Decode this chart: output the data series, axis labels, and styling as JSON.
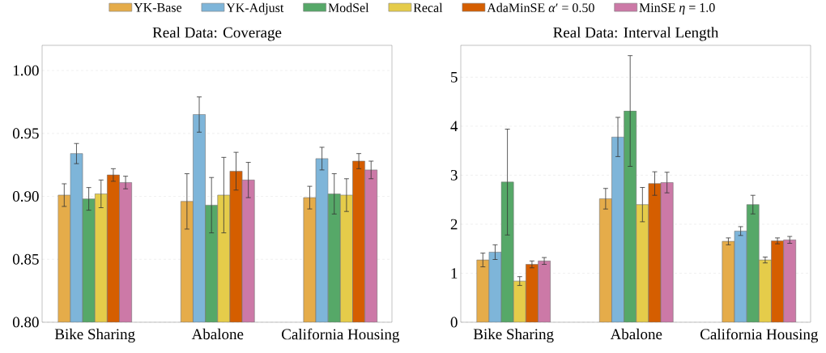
{
  "chart_data": [
    {
      "type": "bar",
      "title": "Real Data: Coverage",
      "categories": [
        "Bike Sharing",
        "Abalone",
        "California Housing"
      ],
      "ylim": [
        0.8,
        1.02
      ],
      "yticks": [
        {
          "value": 0.8,
          "label": "0.80"
        },
        {
          "value": 0.85,
          "label": "0.85"
        },
        {
          "value": 0.9,
          "label": "0.90"
        },
        {
          "value": 0.95,
          "label": "0.95"
        },
        {
          "value": 1.0,
          "label": "1.00"
        }
      ],
      "grid": "y",
      "legend": "top",
      "series": [
        {
          "name": "YK-Base",
          "color": "#e5ac4a",
          "values": [
            0.901,
            0.896,
            0.899
          ],
          "errors": [
            0.009,
            0.022,
            0.009
          ]
        },
        {
          "name": "YK-Adjust",
          "color": "#7eb5d9",
          "values": [
            0.934,
            0.965,
            0.93
          ],
          "errors": [
            0.008,
            0.014,
            0.009
          ]
        },
        {
          "name": "ModSel",
          "color": "#56a868",
          "values": [
            0.898,
            0.893,
            0.902
          ],
          "errors": [
            0.009,
            0.022,
            0.016
          ]
        },
        {
          "name": "Recal",
          "color": "#e5cc4a",
          "values": [
            0.902,
            0.901,
            0.901
          ],
          "errors": [
            0.011,
            0.03,
            0.013
          ]
        },
        {
          "name": "AdaMinSE *α*′ = 0.50",
          "color": "#d55e00",
          "values": [
            0.917,
            0.92,
            0.928
          ],
          "errors": [
            0.005,
            0.015,
            0.006
          ]
        },
        {
          "name": "MinSE *η* = 1.0",
          "color": "#cc79a7",
          "values": [
            0.911,
            0.913,
            0.921
          ],
          "errors": [
            0.005,
            0.014,
            0.007
          ]
        }
      ]
    },
    {
      "type": "bar",
      "title": "Real Data: Interval Length",
      "categories": [
        "Bike Sharing",
        "Abalone",
        "California Housing"
      ],
      "ylim": [
        0,
        5.65
      ],
      "yticks": [
        0,
        1,
        2,
        3,
        4,
        5
      ],
      "grid": "y",
      "series": [
        {
          "color": "#e5ac4a",
          "values": [
            1.27,
            2.52,
            1.65
          ],
          "errors": [
            0.14,
            0.21,
            0.07
          ]
        },
        {
          "color": "#7eb5d9",
          "values": [
            1.43,
            3.78,
            1.86
          ],
          "errors": [
            0.15,
            0.4,
            0.09
          ]
        },
        {
          "color": "#56a868",
          "values": [
            2.86,
            4.31,
            2.4
          ],
          "errors": [
            1.08,
            1.13,
            0.19
          ]
        },
        {
          "color": "#e5cc4a",
          "values": [
            0.84,
            2.4,
            1.27
          ],
          "errors": [
            0.09,
            0.35,
            0.06
          ]
        },
        {
          "color": "#d55e00",
          "values": [
            1.18,
            2.83,
            1.66
          ],
          "errors": [
            0.07,
            0.24,
            0.06
          ]
        },
        {
          "color": "#cc79a7",
          "values": [
            1.25,
            2.85,
            1.68
          ],
          "errors": [
            0.07,
            0.21,
            0.07
          ]
        }
      ]
    }
  ]
}
